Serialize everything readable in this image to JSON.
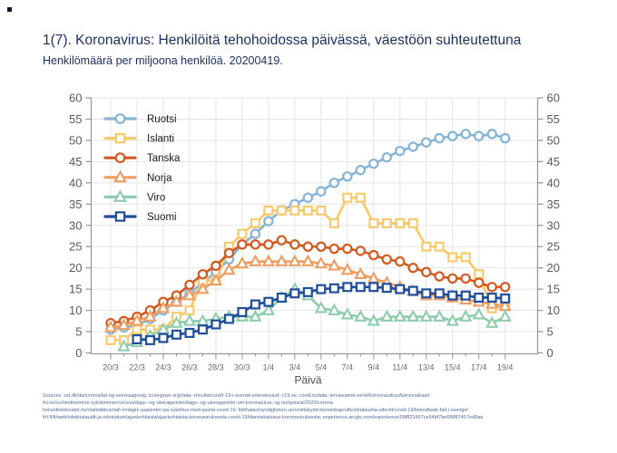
{
  "page": {
    "title": "1(7). Koronavirus: Henkilöitä tehohoidossa päivässä, väestöön suhteutettuna",
    "subtitle": "Henkilömäärä per miljoona henkilöä. 20200419.",
    "footer_lines": [
      "Sources: sst.dk/da/corona/tal-og-overvaagning; icuregswe.org/data--resultat/covid-19-i-svensk-intensivvard; c19.se; covid.is/data;  terviseamet.ee/et/koroonaviirus/koroonakaart",
      "thl.no/sv/smittsomme-sykdommer/corona/dags--og-ukerapporter/dags--og-ukerapporter-om-koronavirus; vg.no/spesial/2020/corona",
      "helsedirektoratet.no/statistikk/antall-innlagte-pasienter-pa-sykehus-med-pavist-covid-19; folkhalsomyndigheten.se/smittskydd-beredskap/utbrott/aktuella-utbrott/covid-19/bekraftade-fall-i-sverige/",
      "thl.fi/fi/web/infektiotaudit-ja-rokotukset/ajankohtaista/ajankohtaista-koronaviruksesta-covid-19/tilannekatsaus-koronaviruksesta; experience.arcgis.com/experience/09f821667ce64bf7be6f9f87457ed9aa"
    ]
  },
  "colors": {
    "title_text": "#1e3064",
    "axis_text": "#595959",
    "xaxis_text": "#6a6a6a",
    "grid": "#e4e4e4",
    "axis_line": "#9a9a9a",
    "legend_text": "#1a1a1a",
    "footer_text": "#54699a",
    "background": "#ffffff"
  },
  "chart_data": {
    "type": "line",
    "title": "1(7). Koronavirus: Henkilöitä tehohoidossa päivässä, väestöön suhteutettuna",
    "subtitle": "Henkilömäärä per miljoona henkilöä. 20200419.",
    "xlabel": "Päivä",
    "ylabel": "",
    "ylim": [
      0,
      60
    ],
    "ytick_step": 5,
    "grid": true,
    "legend_position": "top-left",
    "dual_y_axis": true,
    "categories": [
      "20/3",
      "21/3",
      "22/3",
      "23/3",
      "24/3",
      "25/3",
      "26/3",
      "27/3",
      "28/3",
      "29/3",
      "30/3",
      "31/3",
      "1/4",
      "2/4",
      "3/4",
      "4/4",
      "5/4",
      "6/4",
      "7/4",
      "8/4",
      "9/4",
      "10/4",
      "11/4",
      "12/4",
      "13/4",
      "14/4",
      "15/4",
      "16/4",
      "17/4",
      "18/4",
      "19/4"
    ],
    "xtick_labels": [
      "20/3",
      "22/3",
      "24/3",
      "26/3",
      "28/3",
      "30/3",
      "1/4",
      "3/4",
      "5/4",
      "7/4",
      "9/4",
      "11/4",
      "13/4",
      "15/4",
      "17/4",
      "19/4"
    ],
    "series": [
      {
        "name": "Ruotsi",
        "color": "#85b4d6",
        "marker": "circle",
        "values": [
          5.5,
          6,
          6.5,
          8,
          10,
          12,
          14,
          16.5,
          19,
          22,
          25.5,
          28,
          31,
          33.5,
          35,
          36.5,
          38,
          40,
          41.5,
          43,
          44.5,
          46,
          47.5,
          48.5,
          49.5,
          50.5,
          51,
          51.5,
          51,
          51.5,
          50.5
        ]
      },
      {
        "name": "Islanti",
        "color": "#f8ca6c",
        "marker": "square",
        "values": [
          3,
          3,
          5.5,
          5.5,
          5.5,
          8.5,
          10,
          17,
          17,
          25,
          28,
          30.5,
          33.5,
          33.5,
          33.5,
          33.5,
          33.5,
          30.5,
          36.5,
          36.5,
          30.5,
          30.5,
          30.5,
          30.5,
          25,
          25,
          22.5,
          22.5,
          18.5,
          10.5,
          11
        ]
      },
      {
        "name": "Tanska",
        "color": "#d35a21",
        "marker": "circle",
        "values": [
          7,
          7.5,
          8.5,
          10,
          12,
          13.5,
          16,
          18.5,
          20.5,
          23.5,
          25.5,
          25.5,
          25.5,
          26.5,
          25.5,
          25,
          25,
          24.5,
          24.5,
          24,
          23,
          22,
          21.5,
          20,
          19,
          18,
          17.5,
          17.5,
          16.5,
          15.5,
          15.5
        ]
      },
      {
        "name": "Norja",
        "color": "#ed9e63",
        "marker": "triangle",
        "values": [
          6,
          6.5,
          7.5,
          8.5,
          10.5,
          12,
          13.5,
          15,
          17,
          19.5,
          21,
          21.5,
          21.5,
          21.5,
          21.5,
          21.5,
          21,
          20.5,
          19.5,
          18.5,
          17.5,
          16.5,
          15.5,
          14.5,
          13.5,
          13.5,
          13,
          12.5,
          12,
          11.5,
          11
        ]
      },
      {
        "name": "Viro",
        "color": "#8ecdad",
        "marker": "triangle",
        "values": [
          null,
          1.5,
          2.5,
          4,
          5.5,
          7,
          7.5,
          7.5,
          8,
          8.5,
          8.5,
          8.5,
          10,
          13,
          15,
          13.5,
          10.5,
          10,
          9,
          8.5,
          7.5,
          8.5,
          8.5,
          8.5,
          8.5,
          8.5,
          7.5,
          8.5,
          9,
          7,
          8.5
        ]
      },
      {
        "name": "Suomi",
        "color": "#1f4e9c",
        "marker": "square",
        "values": [
          null,
          null,
          3.2,
          3,
          3.5,
          4.3,
          4.7,
          5.5,
          6.7,
          8,
          9.6,
          11.4,
          12,
          13,
          14,
          14.3,
          15,
          15.2,
          15.5,
          15.5,
          15.5,
          15.3,
          15,
          14.6,
          14,
          14,
          13.5,
          13.5,
          13,
          13,
          12.8
        ]
      }
    ]
  }
}
